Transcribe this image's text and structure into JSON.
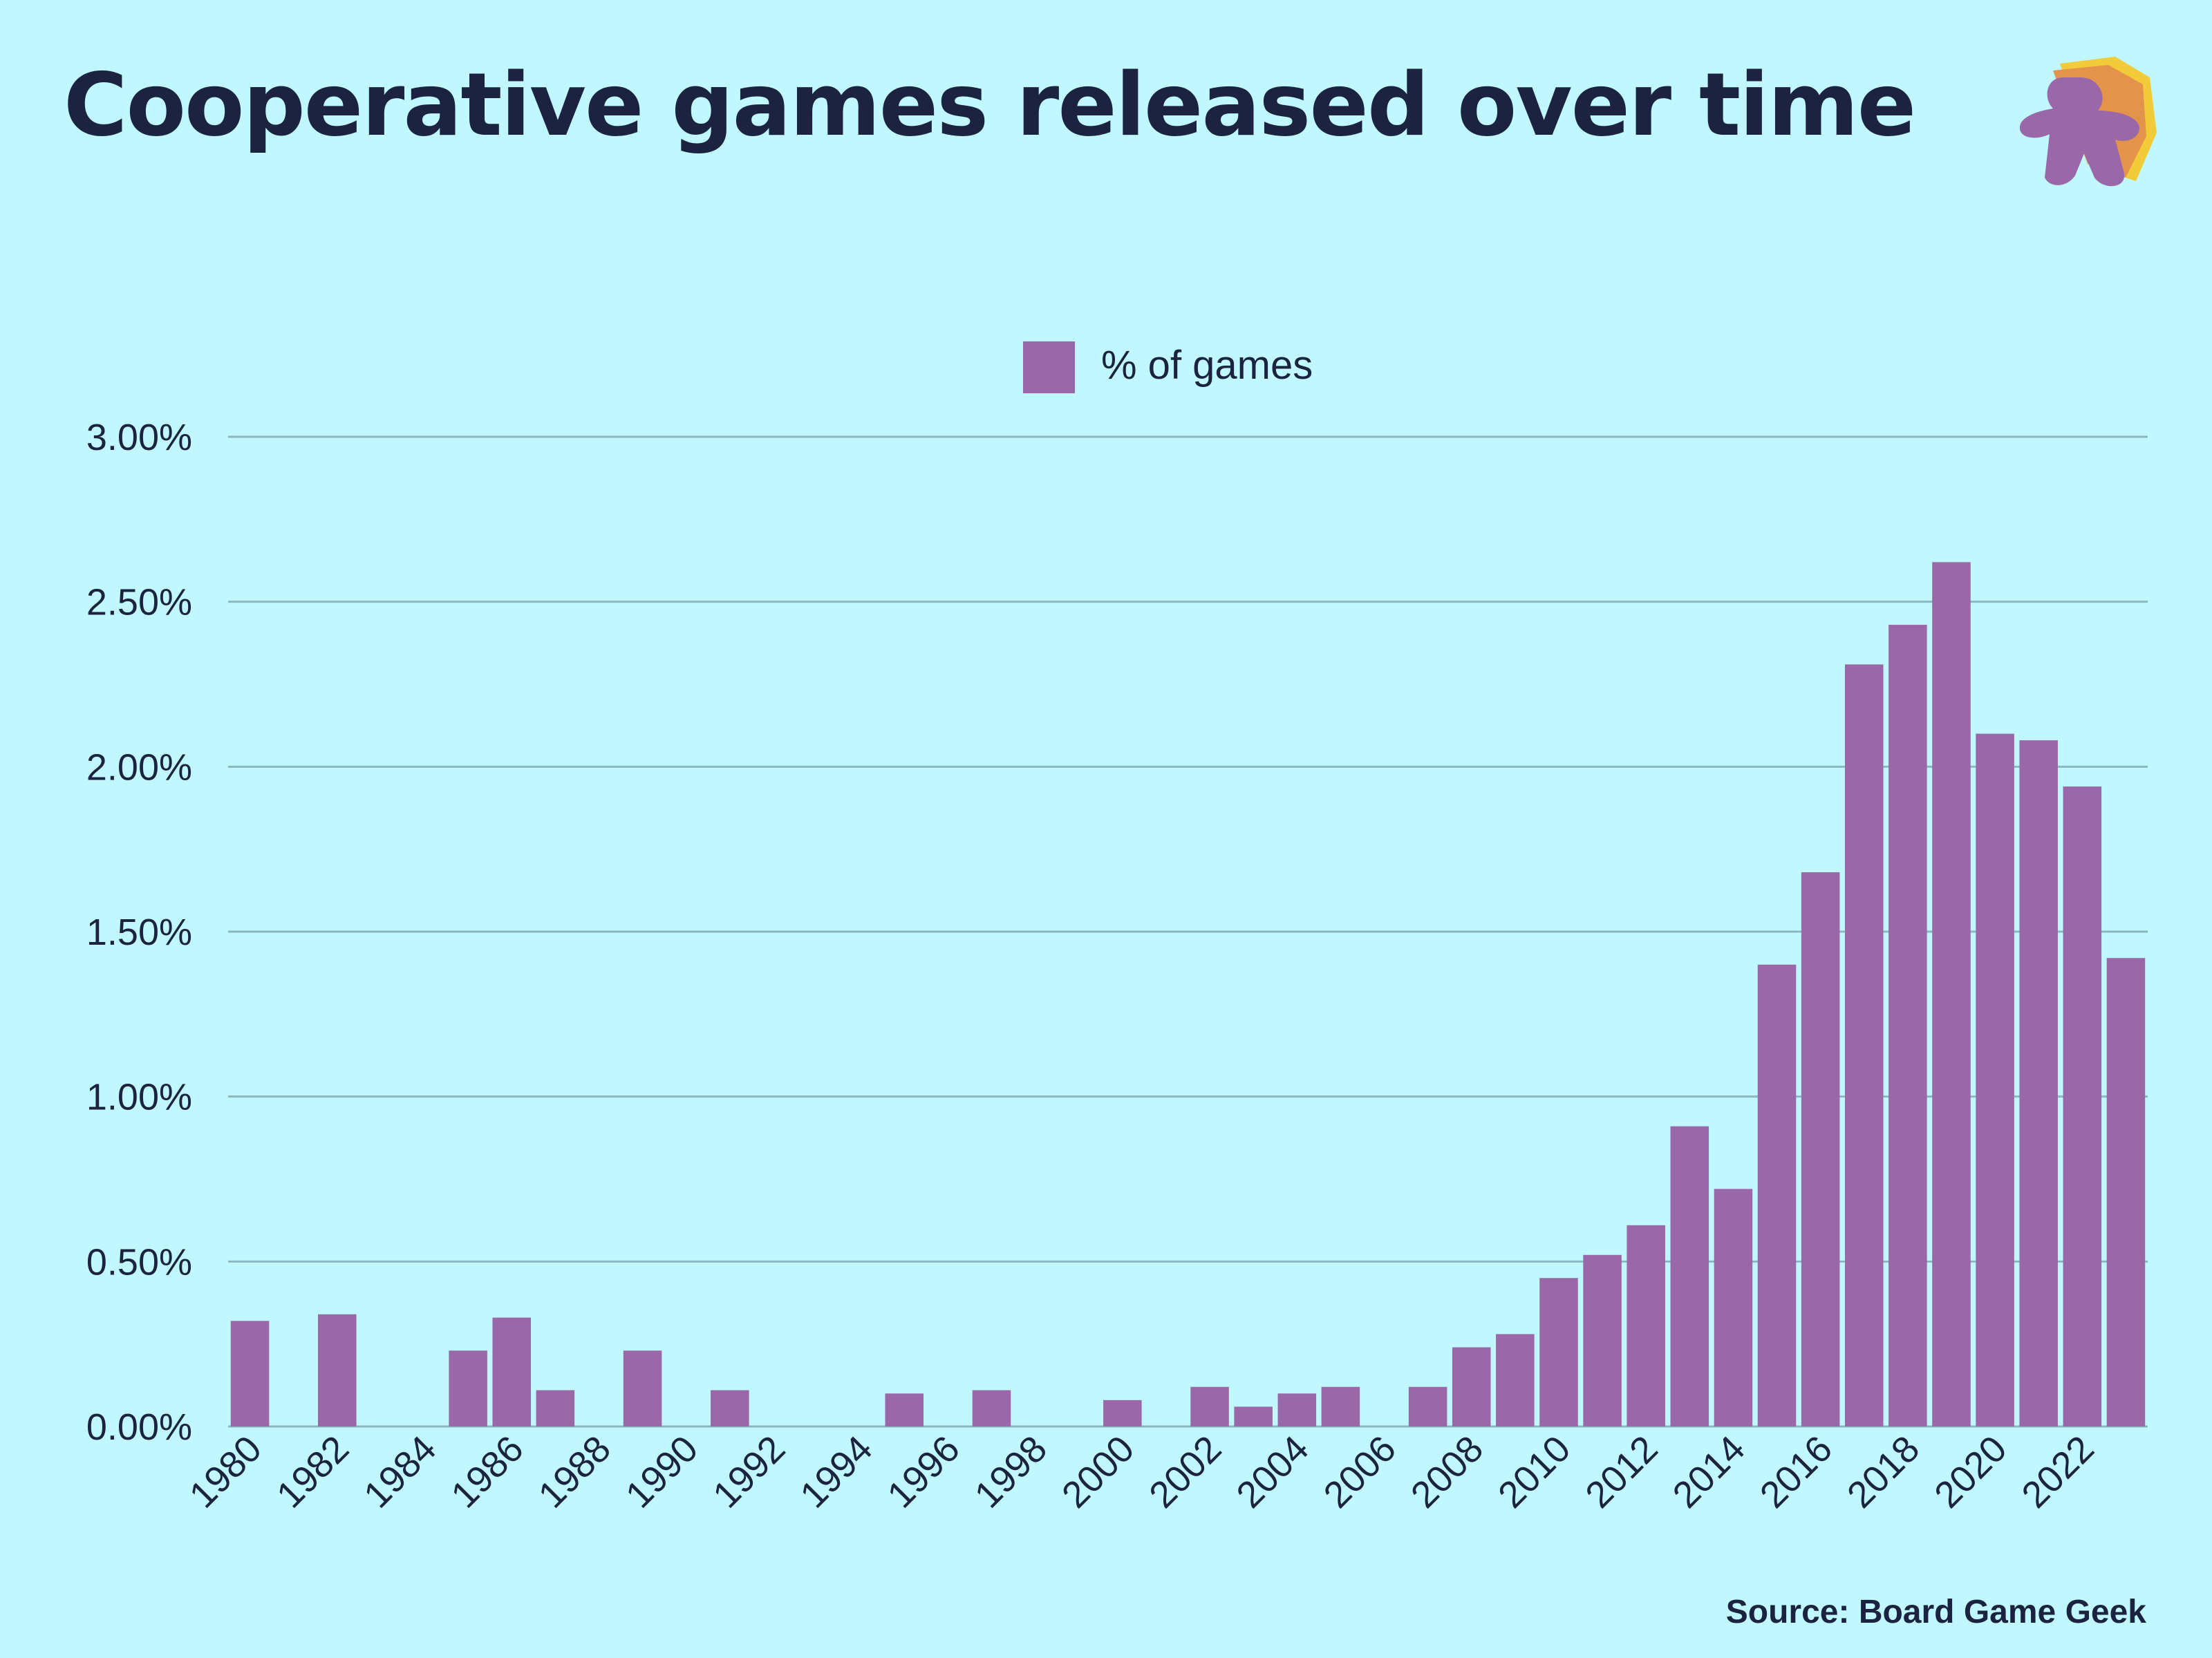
{
  "title": "Cooperative games released over time",
  "source": "Source: Board Game Geek",
  "logo_icon": "meeple-icon",
  "colors": {
    "background": "#c1f8ff",
    "bar": "#9a68a8",
    "grid": "#8db7bf",
    "text": "#1b2340"
  },
  "chart_data": {
    "type": "bar",
    "legend": {
      "label": "% of games",
      "placement": "top-center"
    },
    "categories": [
      "1980",
      "1981",
      "1982",
      "1983",
      "1984",
      "1985",
      "1986",
      "1987",
      "1988",
      "1989",
      "1990",
      "1991",
      "1992",
      "1993",
      "1994",
      "1995",
      "1996",
      "1997",
      "1998",
      "1999",
      "2000",
      "2001",
      "2002",
      "2003",
      "2004",
      "2005",
      "2006",
      "2007",
      "2008",
      "2009",
      "2010",
      "2011",
      "2012",
      "2013",
      "2014",
      "2015",
      "2016",
      "2017",
      "2018",
      "2019",
      "2020",
      "2021",
      "2022",
      "2023"
    ],
    "tick_labels": [
      "1980",
      "1982",
      "1984",
      "1986",
      "1988",
      "1990",
      "1992",
      "1994",
      "1996",
      "1998",
      "2000",
      "2002",
      "2004",
      "2006",
      "2008",
      "2010",
      "2012",
      "2014",
      "2016",
      "2018",
      "2020",
      "2022"
    ],
    "values": [
      0.32,
      0,
      0.34,
      0,
      0,
      0.23,
      0.33,
      0.11,
      0,
      0.23,
      0,
      0.11,
      0,
      0,
      0,
      0.1,
      0,
      0.11,
      0,
      0,
      0.08,
      0,
      0.12,
      0.06,
      0.1,
      0.12,
      0,
      0.12,
      0.24,
      0.28,
      0.45,
      0.52,
      0.61,
      0.91,
      0.72,
      1.4,
      1.68,
      2.31,
      2.43,
      2.62,
      2.1,
      2.08,
      1.94,
      1.42
    ],
    "ylim": [
      0,
      3
    ],
    "yticks": [
      0,
      0.5,
      1,
      1.5,
      2,
      2.5,
      3
    ],
    "ytick_labels": [
      "0.00%",
      "0.50%",
      "1.00%",
      "1.50%",
      "2.00%",
      "2.50%",
      "3.00%"
    ],
    "grid": true,
    "xlabel": "",
    "ylabel": ""
  }
}
